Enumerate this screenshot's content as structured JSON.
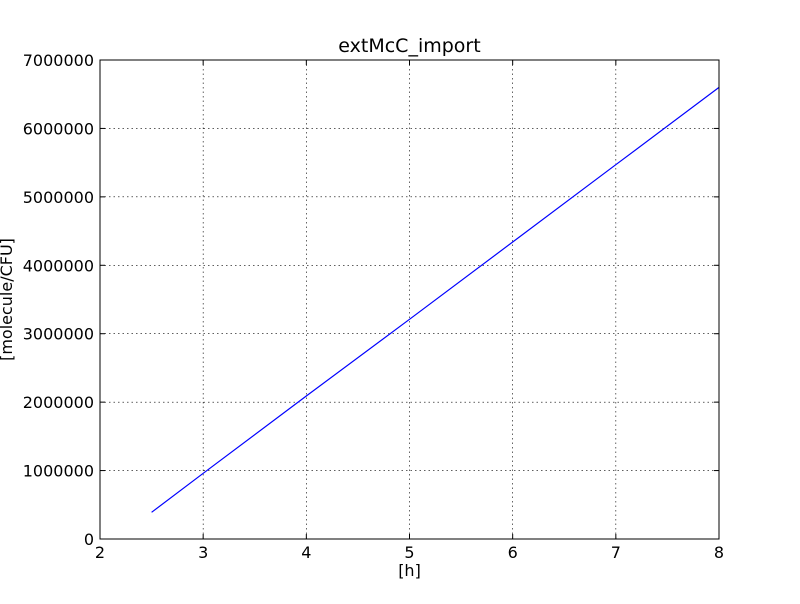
{
  "chart_data": {
    "type": "line",
    "title": "extMcC_import",
    "xlabel": "[h]",
    "ylabel": "[molecule/CFU]",
    "xlim": [
      2,
      8
    ],
    "ylim": [
      0,
      7000000
    ],
    "xticks": [
      2,
      3,
      4,
      5,
      6,
      7,
      8
    ],
    "yticks": [
      0,
      1000000,
      2000000,
      3000000,
      4000000,
      5000000,
      6000000,
      7000000
    ],
    "xtick_labels": [
      "2",
      "3",
      "4",
      "5",
      "6",
      "7",
      "8"
    ],
    "ytick_labels": [
      "0",
      "1000000",
      "2000000",
      "3000000",
      "4000000",
      "5000000",
      "6000000",
      "7000000"
    ],
    "grid": true,
    "series": [
      {
        "color": "#0000ff",
        "x": [
          2.5,
          3,
          4,
          5,
          6,
          7,
          8
        ],
        "y": [
          390000,
          960000,
          2090000,
          3210000,
          4340000,
          5470000,
          6600000
        ]
      }
    ]
  }
}
